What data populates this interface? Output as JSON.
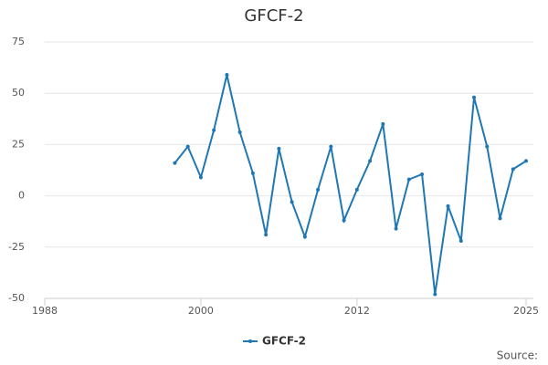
{
  "chart_data": {
    "type": "line",
    "title": "GFCF-2",
    "source": "Source:",
    "x": [
      1998,
      1999,
      2000,
      2001,
      2002,
      2003,
      2004,
      2005,
      2006,
      2007,
      2008,
      2009,
      2010,
      2011,
      2012,
      2013,
      2014,
      2015,
      2016,
      2017,
      2018,
      2019,
      2020,
      2021,
      2022,
      2023,
      2024,
      2025
    ],
    "series": [
      {
        "name": "GFCF-2",
        "color": "#1f77b4",
        "values": [
          16,
          24,
          9,
          32,
          59,
          31,
          11,
          -19,
          23,
          -3,
          -20,
          3,
          24,
          -12,
          3,
          17,
          35,
          -16,
          8,
          10.5,
          -48,
          -5,
          -22,
          48,
          24,
          -11,
          13,
          17
        ]
      }
    ],
    "xlim": [
      1988,
      2025
    ],
    "xticks": [
      1988,
      2000,
      2012,
      2025
    ],
    "ylim": [
      -50,
      75
    ],
    "yticks": [
      -50,
      -25,
      0,
      25,
      50,
      75
    ],
    "grid": true
  }
}
